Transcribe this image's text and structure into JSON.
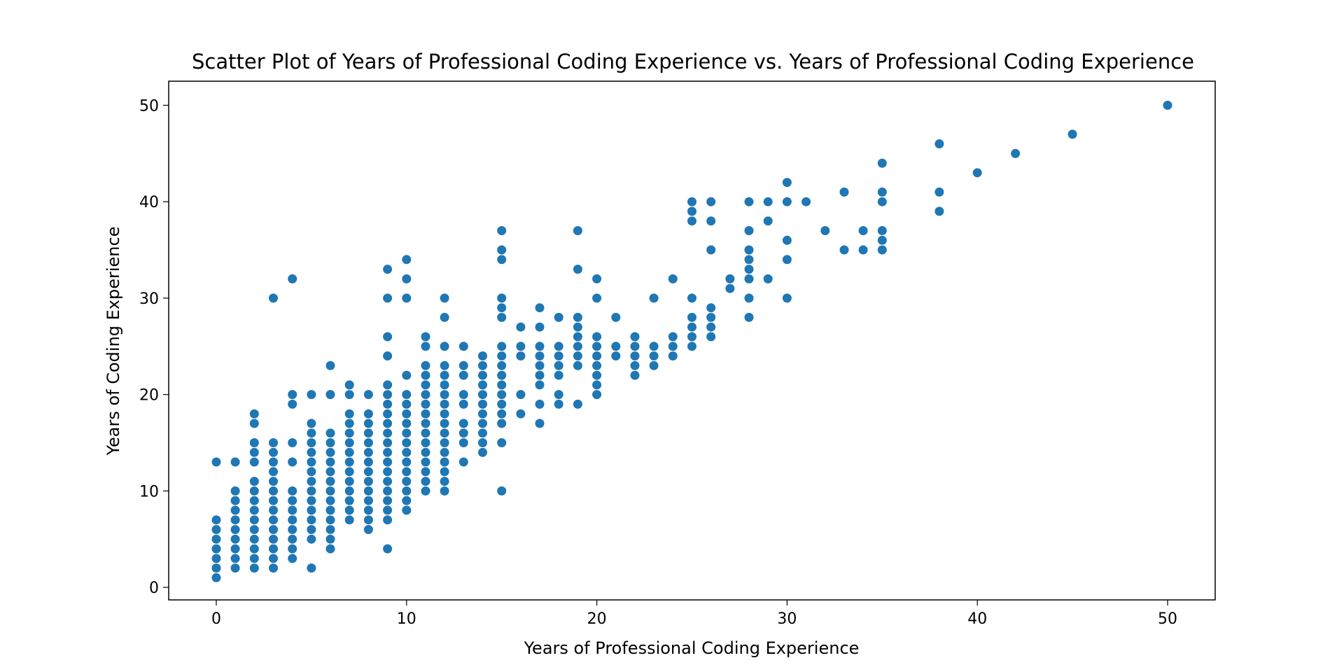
{
  "chart_data": {
    "type": "scatter",
    "title": "Scatter Plot of Years of Professional Coding Experience vs. Years of Professional Coding Experience",
    "xlabel": "Years of Professional Coding Experience",
    "ylabel": "Years of Coding Experience",
    "xlim": [
      -2.5,
      52.5
    ],
    "ylim": [
      -1.3,
      52.5
    ],
    "xticks": [
      "0",
      "10",
      "20",
      "30",
      "40",
      "50"
    ],
    "yticks": [
      "0",
      "10",
      "20",
      "30",
      "40",
      "50"
    ],
    "grid": false,
    "legend": "none",
    "marker_color": "#1f77b4",
    "x": [
      0,
      0,
      0,
      0,
      0,
      0,
      0,
      0,
      1,
      1,
      1,
      1,
      1,
      1,
      1,
      1,
      1,
      1,
      2,
      2,
      2,
      2,
      2,
      2,
      2,
      2,
      2,
      2,
      2,
      2,
      2,
      2,
      2,
      3,
      3,
      3,
      3,
      3,
      3,
      3,
      3,
      3,
      3,
      3,
      3,
      3,
      3,
      3,
      4,
      4,
      4,
      4,
      4,
      4,
      4,
      4,
      4,
      4,
      4,
      4,
      4,
      5,
      5,
      5,
      5,
      5,
      5,
      5,
      5,
      5,
      5,
      5,
      5,
      5,
      5,
      5,
      5,
      6,
      6,
      6,
      6,
      6,
      6,
      6,
      6,
      6,
      6,
      6,
      6,
      6,
      6,
      6,
      7,
      7,
      7,
      7,
      7,
      7,
      7,
      7,
      7,
      7,
      7,
      7,
      7,
      7,
      8,
      8,
      8,
      8,
      8,
      8,
      8,
      8,
      8,
      8,
      8,
      8,
      8,
      8,
      9,
      9,
      9,
      9,
      9,
      9,
      9,
      9,
      9,
      9,
      9,
      9,
      9,
      9,
      9,
      9,
      9,
      9,
      9,
      9,
      10,
      10,
      10,
      10,
      10,
      10,
      10,
      10,
      10,
      10,
      10,
      10,
      10,
      10,
      10,
      10,
      10,
      11,
      11,
      11,
      11,
      11,
      11,
      11,
      11,
      11,
      11,
      11,
      11,
      11,
      11,
      11,
      11,
      12,
      12,
      12,
      12,
      12,
      12,
      12,
      12,
      12,
      12,
      12,
      12,
      12,
      12,
      12,
      12,
      12,
      13,
      13,
      13,
      13,
      13,
      13,
      13,
      13,
      13,
      14,
      14,
      14,
      14,
      14,
      14,
      14,
      14,
      14,
      14,
      14,
      15,
      15,
      15,
      15,
      15,
      15,
      15,
      15,
      15,
      15,
      15,
      15,
      15,
      15,
      15,
      15,
      15,
      16,
      16,
      16,
      16,
      16,
      17,
      17,
      17,
      17,
      17,
      17,
      17,
      17,
      17,
      18,
      18,
      18,
      18,
      18,
      18,
      18,
      19,
      19,
      19,
      19,
      19,
      19,
      19,
      19,
      19,
      20,
      20,
      20,
      20,
      20,
      20,
      20,
      20,
      20,
      21,
      21,
      21,
      22,
      22,
      22,
      22,
      22,
      23,
      23,
      23,
      23,
      24,
      24,
      24,
      24,
      25,
      25,
      25,
      25,
      25,
      25,
      25,
      25,
      26,
      26,
      26,
      26,
      26,
      26,
      26,
      27,
      27,
      28,
      28,
      28,
      28,
      28,
      28,
      28,
      28,
      29,
      29,
      29,
      30,
      30,
      30,
      30,
      30,
      31,
      32,
      33,
      33,
      34,
      34,
      35,
      35,
      35,
      35,
      35,
      35,
      38,
      38,
      38,
      40,
      42,
      45,
      50
    ],
    "y": [
      1,
      2,
      3,
      4,
      5,
      6,
      7,
      13,
      2,
      3,
      4,
      5,
      6,
      7,
      8,
      9,
      10,
      13,
      2,
      3,
      4,
      5,
      6,
      7,
      8,
      9,
      10,
      11,
      13,
      14,
      15,
      17,
      18,
      2,
      3,
      4,
      5,
      6,
      7,
      8,
      9,
      10,
      11,
      12,
      13,
      14,
      15,
      30,
      3,
      4,
      5,
      6,
      7,
      8,
      9,
      10,
      13,
      15,
      19,
      20,
      32,
      2,
      5,
      6,
      7,
      8,
      9,
      10,
      11,
      12,
      13,
      14,
      15,
      16,
      17,
      20,
      6,
      6,
      7,
      8,
      9,
      10,
      11,
      12,
      13,
      14,
      15,
      16,
      20,
      23,
      5,
      4,
      7,
      8,
      9,
      10,
      11,
      12,
      13,
      14,
      15,
      16,
      17,
      18,
      20,
      21,
      7,
      8,
      9,
      10,
      11,
      12,
      13,
      14,
      15,
      16,
      17,
      18,
      20,
      6,
      4,
      9,
      10,
      11,
      12,
      13,
      14,
      15,
      16,
      17,
      19,
      20,
      21,
      24,
      26,
      30,
      33,
      18,
      8,
      7,
      8,
      10,
      11,
      12,
      13,
      14,
      15,
      16,
      17,
      18,
      20,
      22,
      30,
      32,
      34,
      9,
      19,
      11,
      13,
      14,
      15,
      16,
      17,
      18,
      19,
      20,
      21,
      25,
      26,
      12,
      22,
      23,
      10,
      10,
      12,
      13,
      14,
      15,
      16,
      17,
      18,
      19,
      20,
      22,
      23,
      25,
      28,
      30,
      11,
      21,
      13,
      15,
      16,
      17,
      20,
      22,
      23,
      25,
      19,
      14,
      16,
      17,
      18,
      19,
      20,
      22,
      23,
      24,
      21,
      15,
      10,
      15,
      17,
      18,
      20,
      21,
      22,
      24,
      25,
      28,
      29,
      30,
      34,
      35,
      37,
      23,
      19,
      18,
      20,
      24,
      25,
      27,
      17,
      19,
      22,
      23,
      24,
      25,
      27,
      29,
      21,
      19,
      20,
      22,
      24,
      25,
      28,
      23,
      19,
      23,
      25,
      26,
      27,
      28,
      33,
      37,
      24,
      20,
      21,
      22,
      23,
      25,
      30,
      32,
      24,
      26,
      24,
      25,
      28,
      22,
      23,
      24,
      25,
      26,
      23,
      25,
      30,
      24,
      24,
      26,
      32,
      25,
      25,
      27,
      28,
      30,
      38,
      39,
      40,
      26,
      26,
      28,
      29,
      35,
      38,
      40,
      27,
      31,
      32,
      28,
      30,
      32,
      34,
      35,
      37,
      40,
      33,
      32,
      38,
      40,
      30,
      34,
      40,
      42,
      36,
      40,
      37,
      35,
      41,
      35,
      37,
      35,
      37,
      40,
      41,
      44,
      36,
      39,
      41,
      46,
      43,
      45,
      47,
      50
    ]
  }
}
